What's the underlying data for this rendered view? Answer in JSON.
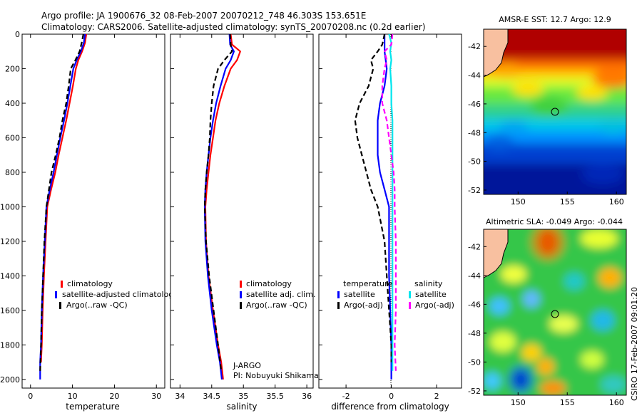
{
  "header": {
    "line1": "Argo profile: JA 1900676_32 08-Feb-2007 20070212_748 46.303S 153.651E",
    "line2": "Climatology: CARS2006. Satellite-adjusted climatology: synTS_20070208.nc (0.2d earlier)"
  },
  "side_label": "CSIRO 17-Feb-2007 09:01:20",
  "colors": {
    "climatology": "#ff0000",
    "satellite": "#0000ff",
    "argo": "#000000",
    "cyan": "#00e5ee",
    "magenta": "#ff00ff"
  },
  "chart_data": [
    {
      "type": "line",
      "xlabel": "temperature",
      "ylabel": "",
      "xlim": [
        -2,
        32
      ],
      "ylim": [
        2050,
        0
      ],
      "xticks": [
        "0",
        "10",
        "20",
        "30"
      ],
      "xtick_values": [
        0,
        10,
        20,
        30
      ],
      "yticks": [
        "0",
        "200",
        "400",
        "600",
        "800",
        "1000",
        "1200",
        "1400",
        "1600",
        "1800",
        "2000"
      ],
      "ytick_values": [
        0,
        200,
        400,
        600,
        800,
        1000,
        1200,
        1400,
        1600,
        1800,
        2000
      ],
      "legend": [
        "climatology",
        "satellite-adjusted climatology",
        "Argo(..raw -QC)"
      ],
      "legend_placement": "lower-right",
      "series": [
        {
          "name": "climatology",
          "color": "#ff0000",
          "dash": "",
          "x": [
            13.3,
            13.0,
            12.3,
            11.4,
            10.8,
            10.1,
            9.3,
            8.5,
            7.6,
            6.7,
            5.9,
            4.9,
            4.0,
            3.6,
            3.2,
            2.9,
            2.7,
            2.5
          ],
          "y": [
            0,
            50,
            100,
            150,
            200,
            300,
            400,
            500,
            600,
            700,
            800,
            900,
            1000,
            1200,
            1400,
            1600,
            1800,
            1900
          ]
        },
        {
          "name": "satellite-adjusted climatology",
          "color": "#0000ff",
          "dash": "",
          "x": [
            13.0,
            12.7,
            12.0,
            11.0,
            10.2,
            9.5,
            8.8,
            8.0,
            7.1,
            6.3,
            5.5,
            4.6,
            3.8,
            3.4,
            3.0,
            2.7,
            2.5,
            2.3,
            2.3
          ],
          "y": [
            0,
            50,
            100,
            150,
            200,
            300,
            400,
            500,
            600,
            700,
            800,
            900,
            1000,
            1200,
            1400,
            1600,
            1800,
            1900,
            2000
          ]
        },
        {
          "name": "Argo(..raw -QC)",
          "color": "#000000",
          "dash": "7,4",
          "x": [
            12.6,
            12.2,
            11.7,
            10.7,
            9.6,
            9.1,
            8.5,
            7.6,
            6.9,
            6.0,
            5.0,
            4.4,
            3.8,
            3.3,
            3.0,
            2.7,
            2.5,
            2.3
          ],
          "y": [
            0,
            50,
            100,
            150,
            200,
            300,
            400,
            500,
            600,
            700,
            800,
            900,
            1000,
            1200,
            1400,
            1600,
            1800,
            1950
          ]
        }
      ]
    },
    {
      "type": "line",
      "xlabel": "salinity",
      "ylabel": "",
      "xlim": [
        33.85,
        36.1
      ],
      "ylim": [
        2050,
        0
      ],
      "xticks": [
        "34",
        "34.5",
        "35",
        "35.5",
        "36"
      ],
      "xtick_values": [
        34,
        34.5,
        35,
        35.5,
        36
      ],
      "legend": [
        "climatology",
        "satellite adj. clim.",
        "Argo(..raw -QC)"
      ],
      "legend_placement": "lower-right",
      "annotation": {
        "line1": "J-ARGO",
        "line2": "PI: Nobuyuki Shikama"
      },
      "series": [
        {
          "name": "climatology",
          "color": "#ff0000",
          "dash": "",
          "x": [
            34.8,
            34.82,
            34.95,
            34.9,
            34.8,
            34.7,
            34.62,
            34.56,
            34.52,
            34.48,
            34.45,
            34.42,
            34.4,
            34.41,
            34.45,
            34.52,
            34.6,
            34.65,
            34.68
          ],
          "y": [
            0,
            60,
            100,
            150,
            200,
            300,
            400,
            500,
            600,
            700,
            800,
            900,
            1000,
            1200,
            1400,
            1600,
            1800,
            1900,
            2000
          ]
        },
        {
          "name": "satellite adj. clim.",
          "color": "#0000ff",
          "dash": "",
          "x": [
            34.78,
            34.79,
            34.85,
            34.8,
            34.72,
            34.64,
            34.57,
            34.52,
            34.48,
            34.45,
            34.42,
            34.4,
            34.39,
            34.4,
            34.44,
            34.5,
            34.58,
            34.63,
            34.66
          ],
          "y": [
            0,
            60,
            100,
            150,
            200,
            300,
            400,
            500,
            600,
            700,
            800,
            900,
            1000,
            1200,
            1400,
            1600,
            1800,
            1900,
            2000
          ]
        },
        {
          "name": "Argo(..raw -QC)",
          "color": "#000000",
          "dash": "7,4",
          "x": [
            34.79,
            34.8,
            34.82,
            34.7,
            34.6,
            34.53,
            34.5,
            34.48,
            34.47,
            34.45,
            34.42,
            34.4,
            34.39,
            34.41,
            34.46,
            34.53,
            34.6,
            34.65
          ],
          "y": [
            0,
            60,
            100,
            150,
            200,
            300,
            400,
            500,
            600,
            700,
            800,
            900,
            1000,
            1200,
            1400,
            1600,
            1800,
            1950
          ]
        }
      ]
    },
    {
      "type": "line",
      "xlabel": "difference from climatology",
      "ylabel": "",
      "xlim": [
        -3.2,
        3.1
      ],
      "ylim": [
        2050,
        0
      ],
      "xticks": [
        "-2",
        "0",
        "2"
      ],
      "xtick_values": [
        -2,
        0,
        2
      ],
      "legend_left_title": "temperature",
      "legend_right_title": "salinity",
      "legend": [
        "satellite",
        "Argo(-adj)",
        "satellite",
        "Argo(-adj)"
      ],
      "legend_placement": "lower-center",
      "series": [
        {
          "name": "satellite",
          "group": "temperature",
          "color": "#0000ff",
          "dash": "",
          "x": [
            -0.3,
            -0.3,
            -0.3,
            -0.25,
            -0.2,
            -0.3,
            -0.5,
            -0.6,
            -0.6,
            -0.6,
            -0.5,
            -0.3,
            -0.1,
            -0.1,
            -0.1,
            -0.05,
            0,
            0,
            0
          ],
          "y": [
            0,
            50,
            100,
            150,
            200,
            300,
            400,
            500,
            600,
            700,
            800,
            900,
            1000,
            1200,
            1400,
            1600,
            1800,
            1900,
            2000
          ]
        },
        {
          "name": "Argo(-adj)",
          "group": "temperature",
          "color": "#000000",
          "dash": "7,4",
          "x": [
            -0.3,
            -0.4,
            -0.6,
            -0.9,
            -0.8,
            -1.0,
            -1.4,
            -1.6,
            -1.5,
            -1.3,
            -1.1,
            -0.9,
            -0.6,
            -0.3,
            -0.2,
            -0.1,
            0,
            0
          ],
          "y": [
            0,
            60,
            100,
            150,
            200,
            300,
            400,
            500,
            600,
            700,
            800,
            900,
            1000,
            1200,
            1400,
            1600,
            1800,
            1900
          ]
        },
        {
          "name": "satellite",
          "group": "salinity",
          "color": "#00e5ee",
          "dash": "",
          "x": [
            -0.1,
            0.0,
            -0.05,
            0.0,
            -0.05,
            0.0,
            0.0,
            0.05,
            0.05,
            0.05,
            0.05,
            0.05,
            0.05,
            0.05,
            0.05,
            0.05,
            0.05,
            0.05
          ],
          "y": [
            0,
            50,
            100,
            150,
            200,
            300,
            400,
            500,
            600,
            700,
            800,
            900,
            1000,
            1200,
            1400,
            1600,
            1800,
            1950
          ]
        },
        {
          "name": "Argo(-adj)",
          "group": "salinity",
          "color": "#ff00ff",
          "dash": "7,4",
          "x": [
            0.05,
            0.0,
            -0.3,
            -0.2,
            -0.3,
            -0.4,
            -0.4,
            -0.2,
            -0.1,
            0.0,
            0.1,
            0.15,
            0.15,
            0.2,
            0.2,
            0.2,
            0.15,
            0.2
          ],
          "y": [
            0,
            60,
            100,
            150,
            200,
            300,
            400,
            500,
            600,
            700,
            800,
            900,
            1000,
            1200,
            1400,
            1600,
            1800,
            1950
          ]
        }
      ]
    },
    {
      "type": "heatmap",
      "title": "AMSR-E SST: 12.7 Argo: 12.9",
      "xlim": [
        146.5,
        161
      ],
      "ylim": [
        -52.3,
        -40.8
      ],
      "xticks": [
        "150",
        "155",
        "160"
      ],
      "xtick_values": [
        150,
        155,
        160
      ],
      "yticks": [
        "-42",
        "-44",
        "-46",
        "-48",
        "-50",
        "-52"
      ],
      "ytick_values": [
        -42,
        -44,
        -46,
        -48,
        -50,
        -52
      ],
      "marker": {
        "lon": 153.65,
        "lat": -46.3
      }
    },
    {
      "type": "heatmap",
      "title": "Altimetric SLA: -0.049 Argo: -0.044",
      "xlim": [
        146.5,
        161
      ],
      "ylim": [
        -52.3,
        -40.8
      ],
      "xticks": [
        "150",
        "155",
        "160"
      ],
      "xtick_values": [
        150,
        155,
        160
      ],
      "yticks": [
        "-42",
        "-44",
        "-46",
        "-48",
        "-50",
        "-52"
      ],
      "ytick_values": [
        -42,
        -44,
        -46,
        -48,
        -50,
        -52
      ],
      "marker": {
        "lon": 153.65,
        "lat": -46.3
      }
    }
  ]
}
